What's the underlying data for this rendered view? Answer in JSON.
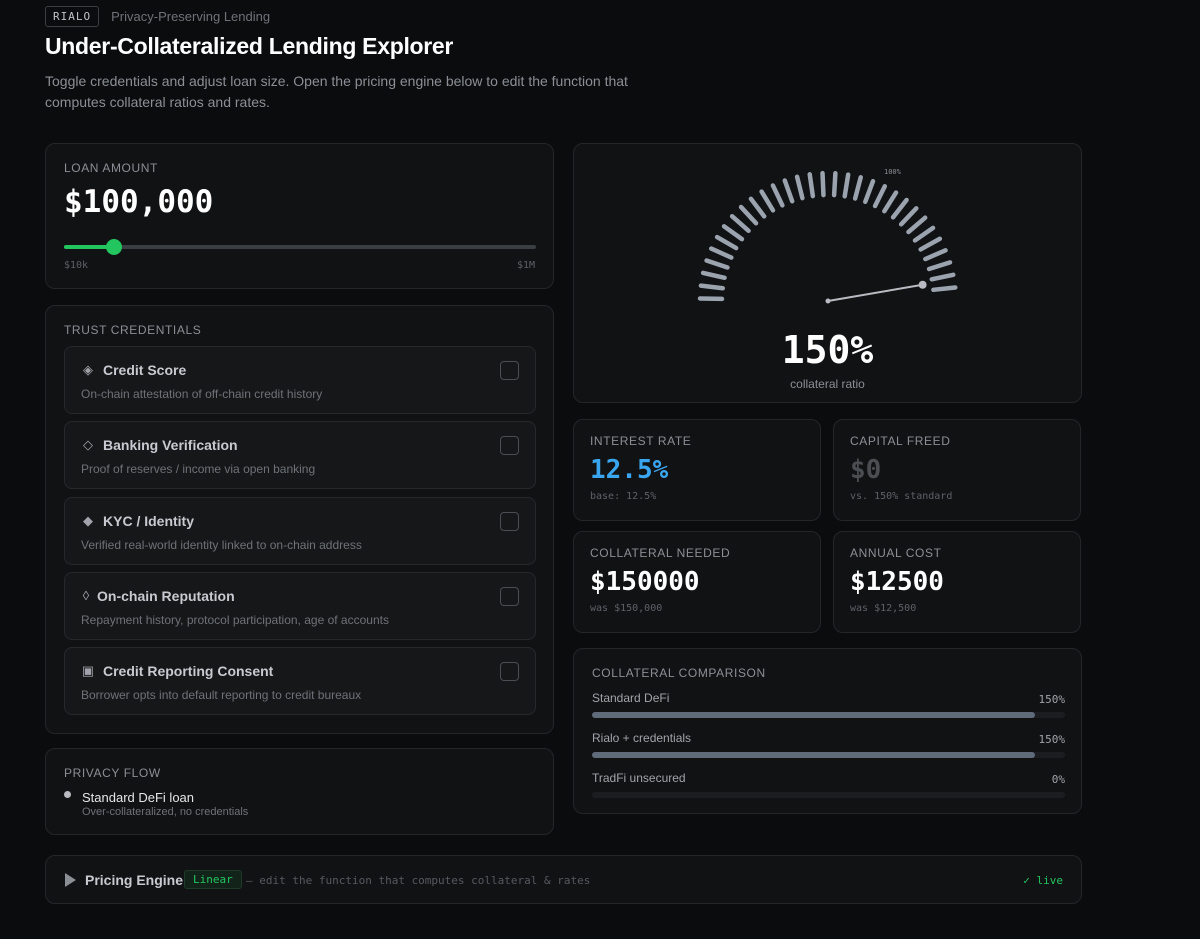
{
  "header": {
    "brand": "RIALO",
    "subtitle": "Privacy-Preserving Lending",
    "title": "Under-Collateralized Lending Explorer",
    "description": "Toggle credentials and adjust loan size. Open the pricing engine below to edit the function that computes collateral ratios and rates."
  },
  "loan": {
    "label": "LOAN AMOUNT",
    "amount": "$100,000",
    "slider_min": "$10k",
    "slider_max": "$1M",
    "slider_fraction": 0.105
  },
  "trust": {
    "label": "TRUST CREDENTIALS",
    "items": [
      {
        "icon": "◈",
        "name": "Credit Score",
        "desc": "On-chain attestation of off-chain credit history",
        "checked": false
      },
      {
        "icon": "◇",
        "name": "Banking Verification",
        "desc": "Proof of reserves / income via open banking",
        "checked": false
      },
      {
        "icon": "◆",
        "name": "KYC / Identity",
        "desc": "Verified real-world identity linked to on-chain address",
        "checked": false
      },
      {
        "icon": "◊",
        "name": "On-chain Reputation",
        "desc": "Repayment history, protocol participation, age of accounts",
        "checked": false
      },
      {
        "icon": "▣",
        "name": "Credit Reporting Consent",
        "desc": "Borrower opts into default reporting to credit bureaux",
        "checked": false
      }
    ]
  },
  "flow": {
    "label": "PRIVACY FLOW",
    "step_name": "Standard DeFi loan",
    "step_desc": "Over-collateralized, no credentials"
  },
  "gauge": {
    "value": "150%",
    "caption": "collateral ratio",
    "marker_label": "100%",
    "ratio_value": 150,
    "ratio_max": 160
  },
  "stats": {
    "interest": {
      "label": "INTEREST RATE",
      "value": "12.5%",
      "sub": "base: 12.5%"
    },
    "capital": {
      "label": "CAPITAL FREED",
      "value": "$0",
      "sub": "vs. 150% standard"
    },
    "collateral": {
      "label": "COLLATERAL NEEDED",
      "value": "$150000",
      "sub": "was $150,000"
    },
    "annual": {
      "label": "ANNUAL COST",
      "value": "$12500",
      "sub": "was $12,500"
    }
  },
  "comparison": {
    "label": "COLLATERAL COMPARISON",
    "rows": [
      {
        "name": "Standard DeFi",
        "value": "150%",
        "fraction": 0.937
      },
      {
        "name": "Rialo + credentials",
        "value": "150%",
        "fraction": 0.937
      },
      {
        "name": "TradFi unsecured",
        "value": "0%",
        "fraction": 0
      }
    ]
  },
  "engine": {
    "title": "Pricing Engine",
    "tag": "Linear",
    "hint": "— edit the function that computes collateral & rates",
    "status": "✓ live"
  },
  "colors": {
    "accent_green": "#22c55e",
    "accent_blue": "#3aa6ef",
    "bar": "#5f6b7b"
  }
}
